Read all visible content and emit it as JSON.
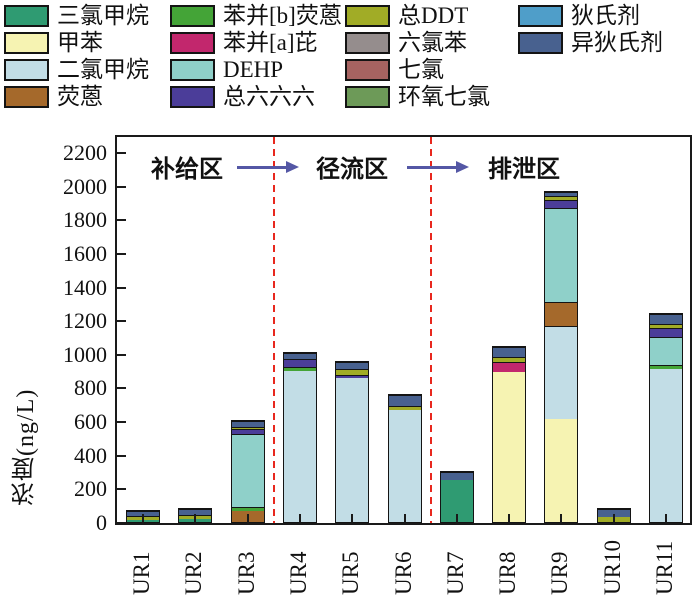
{
  "figure": {
    "background": "#ffffff",
    "axis_color": "#1a1a1a",
    "divider_color": "#e8281e",
    "arrow_color": "#5457a5"
  },
  "legend": {
    "columns": [
      [
        {
          "label": "三氯甲烷",
          "color": "#2f9b72"
        },
        {
          "label": "甲苯",
          "color": "#f6f3b2"
        },
        {
          "label": "二氯甲烷",
          "color": "#c2dde6"
        },
        {
          "label": "荧蒽",
          "color": "#a5692b"
        }
      ],
      [
        {
          "label": "苯并[b]荧蒽",
          "color": "#44a437"
        },
        {
          "label": "苯并[a]芘",
          "color": "#c2276d"
        },
        {
          "label": "DEHP",
          "color": "#8fd0c9"
        },
        {
          "label": "总六六六",
          "color": "#4b3d99"
        }
      ],
      [
        {
          "label": "总DDT",
          "color": "#a1ac26"
        },
        {
          "label": "六氯苯",
          "color": "#958d8d"
        },
        {
          "label": "七氯",
          "color": "#a66361"
        },
        {
          "label": "环氧七氯",
          "color": "#6d9a58"
        }
      ],
      [
        {
          "label": "狄氏剂",
          "color": "#4f9ec9"
        },
        {
          "label": "异狄氏剂",
          "color": "#48618f"
        }
      ]
    ]
  },
  "chart_data": {
    "type": "bar",
    "stacked": true,
    "title": "",
    "xlabel": "",
    "ylabel": "浓度(ng/L)",
    "ylim": [
      0,
      2200
    ],
    "ytick_step": 200,
    "grid": false,
    "legend_position": "top",
    "categories": [
      "UR1",
      "UR2",
      "UR3",
      "UR4",
      "UR5",
      "UR6",
      "UR7",
      "UR8",
      "UR9",
      "UR10",
      "UR11"
    ],
    "series": [
      {
        "name": "三氯甲烷",
        "color": "#2f9b72",
        "values": [
          8,
          15,
          0,
          0,
          0,
          0,
          248,
          0,
          0,
          0,
          0
        ]
      },
      {
        "name": "甲苯",
        "color": "#f6f3b2",
        "values": [
          0,
          0,
          0,
          0,
          0,
          0,
          0,
          892,
          610,
          0,
          0
        ]
      },
      {
        "name": "二氯甲烷",
        "color": "#c2dde6",
        "values": [
          0,
          0,
          0,
          898,
          858,
          665,
          0,
          0,
          552,
          0,
          908
        ]
      },
      {
        "name": "荧蒽",
        "color": "#a5692b",
        "values": [
          0,
          0,
          65,
          0,
          0,
          0,
          0,
          0,
          140,
          0,
          0
        ]
      },
      {
        "name": "苯并[b]荧蒽",
        "color": "#44a437",
        "values": [
          0,
          0,
          25,
          24,
          0,
          0,
          0,
          0,
          0,
          0,
          22
        ]
      },
      {
        "name": "苯并[a]芘",
        "color": "#c2276d",
        "values": [
          0,
          0,
          0,
          0,
          0,
          0,
          0,
          58,
          0,
          0,
          0
        ]
      },
      {
        "name": "DEHP",
        "color": "#8fd0c9",
        "values": [
          0,
          0,
          432,
          0,
          0,
          0,
          0,
          0,
          558,
          0,
          168
        ]
      },
      {
        "name": "总六六六",
        "color": "#4b3d99",
        "values": [
          0,
          0,
          32,
          45,
          16,
          0,
          0,
          0,
          50,
          0,
          55
        ]
      },
      {
        "name": "总DDT",
        "color": "#a1ac26",
        "values": [
          22,
          25,
          14,
          0,
          34,
          25,
          0,
          28,
          24,
          32,
          25
        ]
      },
      {
        "name": "六氯苯",
        "color": "#958d8d",
        "values": [
          0,
          0,
          0,
          0,
          0,
          0,
          0,
          0,
          0,
          0,
          0
        ]
      },
      {
        "name": "七氯",
        "color": "#a66361",
        "values": [
          0,
          0,
          0,
          0,
          0,
          0,
          0,
          0,
          0,
          0,
          0
        ]
      },
      {
        "name": "环氧七氯",
        "color": "#6d9a58",
        "values": [
          0,
          0,
          0,
          0,
          0,
          0,
          0,
          0,
          0,
          0,
          0
        ]
      },
      {
        "name": "狄氏剂",
        "color": "#4f9ec9",
        "values": [
          0,
          0,
          0,
          0,
          0,
          0,
          0,
          0,
          0,
          0,
          0
        ]
      },
      {
        "name": "异狄氏剂",
        "color": "#48618f",
        "values": [
          30,
          38,
          35,
          38,
          42,
          65,
          50,
          60,
          26,
          45,
          60
        ]
      }
    ],
    "totals": [
      60,
      78,
      603,
      1005,
      950,
      755,
      298,
      1038,
      1960,
      77,
      1238
    ],
    "zones": {
      "labels": [
        "补给区",
        "径流区",
        "排泄区"
      ],
      "divider_after": [
        "UR3",
        "UR6"
      ]
    }
  }
}
